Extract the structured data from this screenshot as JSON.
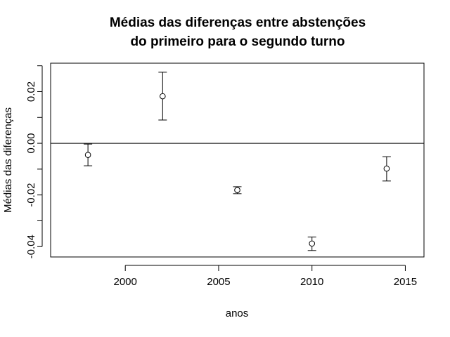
{
  "chart_data": {
    "type": "scatter",
    "title_lines": [
      "Médias das diferenças entre abstenções",
      "do primeiro para o segundo turno"
    ],
    "xlabel": "anos",
    "ylabel": "Médias das diferenças",
    "xlim": [
      1996,
      2016
    ],
    "ylim": [
      -0.044,
      0.031
    ],
    "x_ticks": [
      2000,
      2005,
      2010,
      2015
    ],
    "y_ticks": [
      -0.04,
      -0.02,
      0.0,
      0.02
    ],
    "x_tick_labels": [
      "2000",
      "2005",
      "2010",
      "2015"
    ],
    "y_tick_labels": [
      "-0.04",
      "-0.02",
      "0.00",
      "0.02"
    ],
    "reference_line_y": 0,
    "points": [
      {
        "x": 1998,
        "y": -0.0045,
        "lower": -0.0087,
        "upper": -0.0003
      },
      {
        "x": 2002,
        "y": 0.0182,
        "lower": 0.009,
        "upper": 0.0275
      },
      {
        "x": 2006,
        "y": -0.0181,
        "lower": -0.0195,
        "upper": -0.0168
      },
      {
        "x": 2010,
        "y": -0.0388,
        "lower": -0.0415,
        "upper": -0.0363
      },
      {
        "x": 2014,
        "y": -0.0098,
        "lower": -0.0146,
        "upper": -0.0052
      }
    ]
  }
}
